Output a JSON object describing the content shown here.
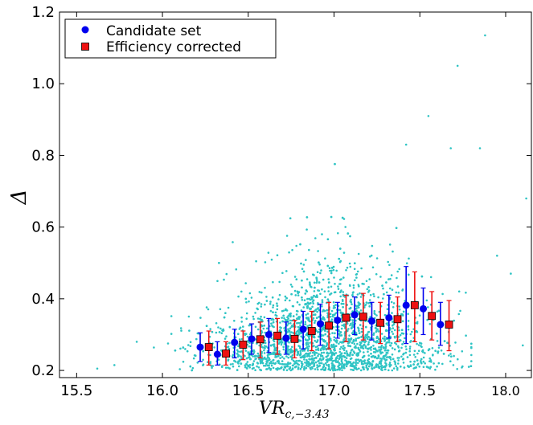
{
  "chart_data": {
    "type": "scatter",
    "xlabel_main": "VR",
    "xlabel_sub": "c,−3.43",
    "ylabel": "Δ",
    "xlim": [
      15.4,
      18.15
    ],
    "ylim": [
      0.18,
      1.2
    ],
    "x_ticks": [
      "15.5",
      "16.0",
      "16.5",
      "17.0",
      "17.5",
      "18.0"
    ],
    "y_ticks": [
      "0.2",
      "0.4",
      "0.6",
      "0.8",
      "1.0",
      "1.2"
    ],
    "legend_position": "top-left",
    "colors": {
      "scatter": "#2ec4c4",
      "candidate": "#0000ee",
      "corrected": "#ee1111",
      "errbar_candidate": "#0000ee",
      "errbar_corrected": "#ee1111"
    },
    "series": [
      {
        "name": "Candidate set",
        "marker": "circle",
        "points": [
          {
            "x": 16.22,
            "y": 0.265,
            "lo": 0.225,
            "hi": 0.305
          },
          {
            "x": 16.32,
            "y": 0.245,
            "lo": 0.215,
            "hi": 0.28
          },
          {
            "x": 16.42,
            "y": 0.278,
            "lo": 0.235,
            "hi": 0.315
          },
          {
            "x": 16.52,
            "y": 0.288,
            "lo": 0.245,
            "hi": 0.33
          },
          {
            "x": 16.62,
            "y": 0.3,
            "lo": 0.25,
            "hi": 0.345
          },
          {
            "x": 16.72,
            "y": 0.29,
            "lo": 0.245,
            "hi": 0.335
          },
          {
            "x": 16.82,
            "y": 0.315,
            "lo": 0.26,
            "hi": 0.365
          },
          {
            "x": 16.92,
            "y": 0.33,
            "lo": 0.27,
            "hi": 0.385
          },
          {
            "x": 17.02,
            "y": 0.34,
            "lo": 0.29,
            "hi": 0.39
          },
          {
            "x": 17.12,
            "y": 0.355,
            "lo": 0.3,
            "hi": 0.405
          },
          {
            "x": 17.22,
            "y": 0.338,
            "lo": 0.285,
            "hi": 0.39
          },
          {
            "x": 17.32,
            "y": 0.347,
            "lo": 0.29,
            "hi": 0.41
          },
          {
            "x": 17.42,
            "y": 0.382,
            "lo": 0.275,
            "hi": 0.49
          },
          {
            "x": 17.52,
            "y": 0.372,
            "lo": 0.3,
            "hi": 0.43
          },
          {
            "x": 17.62,
            "y": 0.328,
            "lo": 0.27,
            "hi": 0.39
          }
        ]
      },
      {
        "name": "Efficiency corrected",
        "marker": "square",
        "points": [
          {
            "x": 16.27,
            "y": 0.265,
            "lo": 0.215,
            "hi": 0.31
          },
          {
            "x": 16.37,
            "y": 0.247,
            "lo": 0.215,
            "hi": 0.28
          },
          {
            "x": 16.47,
            "y": 0.272,
            "lo": 0.23,
            "hi": 0.31
          },
          {
            "x": 16.57,
            "y": 0.287,
            "lo": 0.235,
            "hi": 0.335
          },
          {
            "x": 16.67,
            "y": 0.297,
            "lo": 0.245,
            "hi": 0.345
          },
          {
            "x": 16.77,
            "y": 0.288,
            "lo": 0.235,
            "hi": 0.34
          },
          {
            "x": 16.87,
            "y": 0.31,
            "lo": 0.255,
            "hi": 0.365
          },
          {
            "x": 16.97,
            "y": 0.325,
            "lo": 0.26,
            "hi": 0.39
          },
          {
            "x": 17.07,
            "y": 0.347,
            "lo": 0.28,
            "hi": 0.41
          },
          {
            "x": 17.17,
            "y": 0.35,
            "lo": 0.285,
            "hi": 0.415
          },
          {
            "x": 17.27,
            "y": 0.333,
            "lo": 0.275,
            "hi": 0.39
          },
          {
            "x": 17.37,
            "y": 0.343,
            "lo": 0.28,
            "hi": 0.405
          },
          {
            "x": 17.47,
            "y": 0.382,
            "lo": 0.28,
            "hi": 0.475
          },
          {
            "x": 17.57,
            "y": 0.352,
            "lo": 0.285,
            "hi": 0.42
          },
          {
            "x": 17.67,
            "y": 0.328,
            "lo": 0.255,
            "hi": 0.395
          }
        ]
      }
    ],
    "scatter_distribution": {
      "count": 2600,
      "core_x_mean": 16.95,
      "core_x_sd": 0.33,
      "y_floor": 0.2,
      "y_scale": 0.12,
      "outliers": [
        {
          "x": 17.88,
          "y": 1.135
        },
        {
          "x": 17.72,
          "y": 1.05
        },
        {
          "x": 17.55,
          "y": 0.91
        },
        {
          "x": 17.42,
          "y": 0.83
        },
        {
          "x": 17.68,
          "y": 0.82
        },
        {
          "x": 17.85,
          "y": 0.82
        },
        {
          "x": 18.12,
          "y": 0.68
        },
        {
          "x": 17.95,
          "y": 0.52
        },
        {
          "x": 18.03,
          "y": 0.47
        },
        {
          "x": 15.62,
          "y": 0.205
        },
        {
          "x": 15.72,
          "y": 0.215
        },
        {
          "x": 15.85,
          "y": 0.28
        },
        {
          "x": 18.1,
          "y": 0.27
        }
      ]
    }
  }
}
